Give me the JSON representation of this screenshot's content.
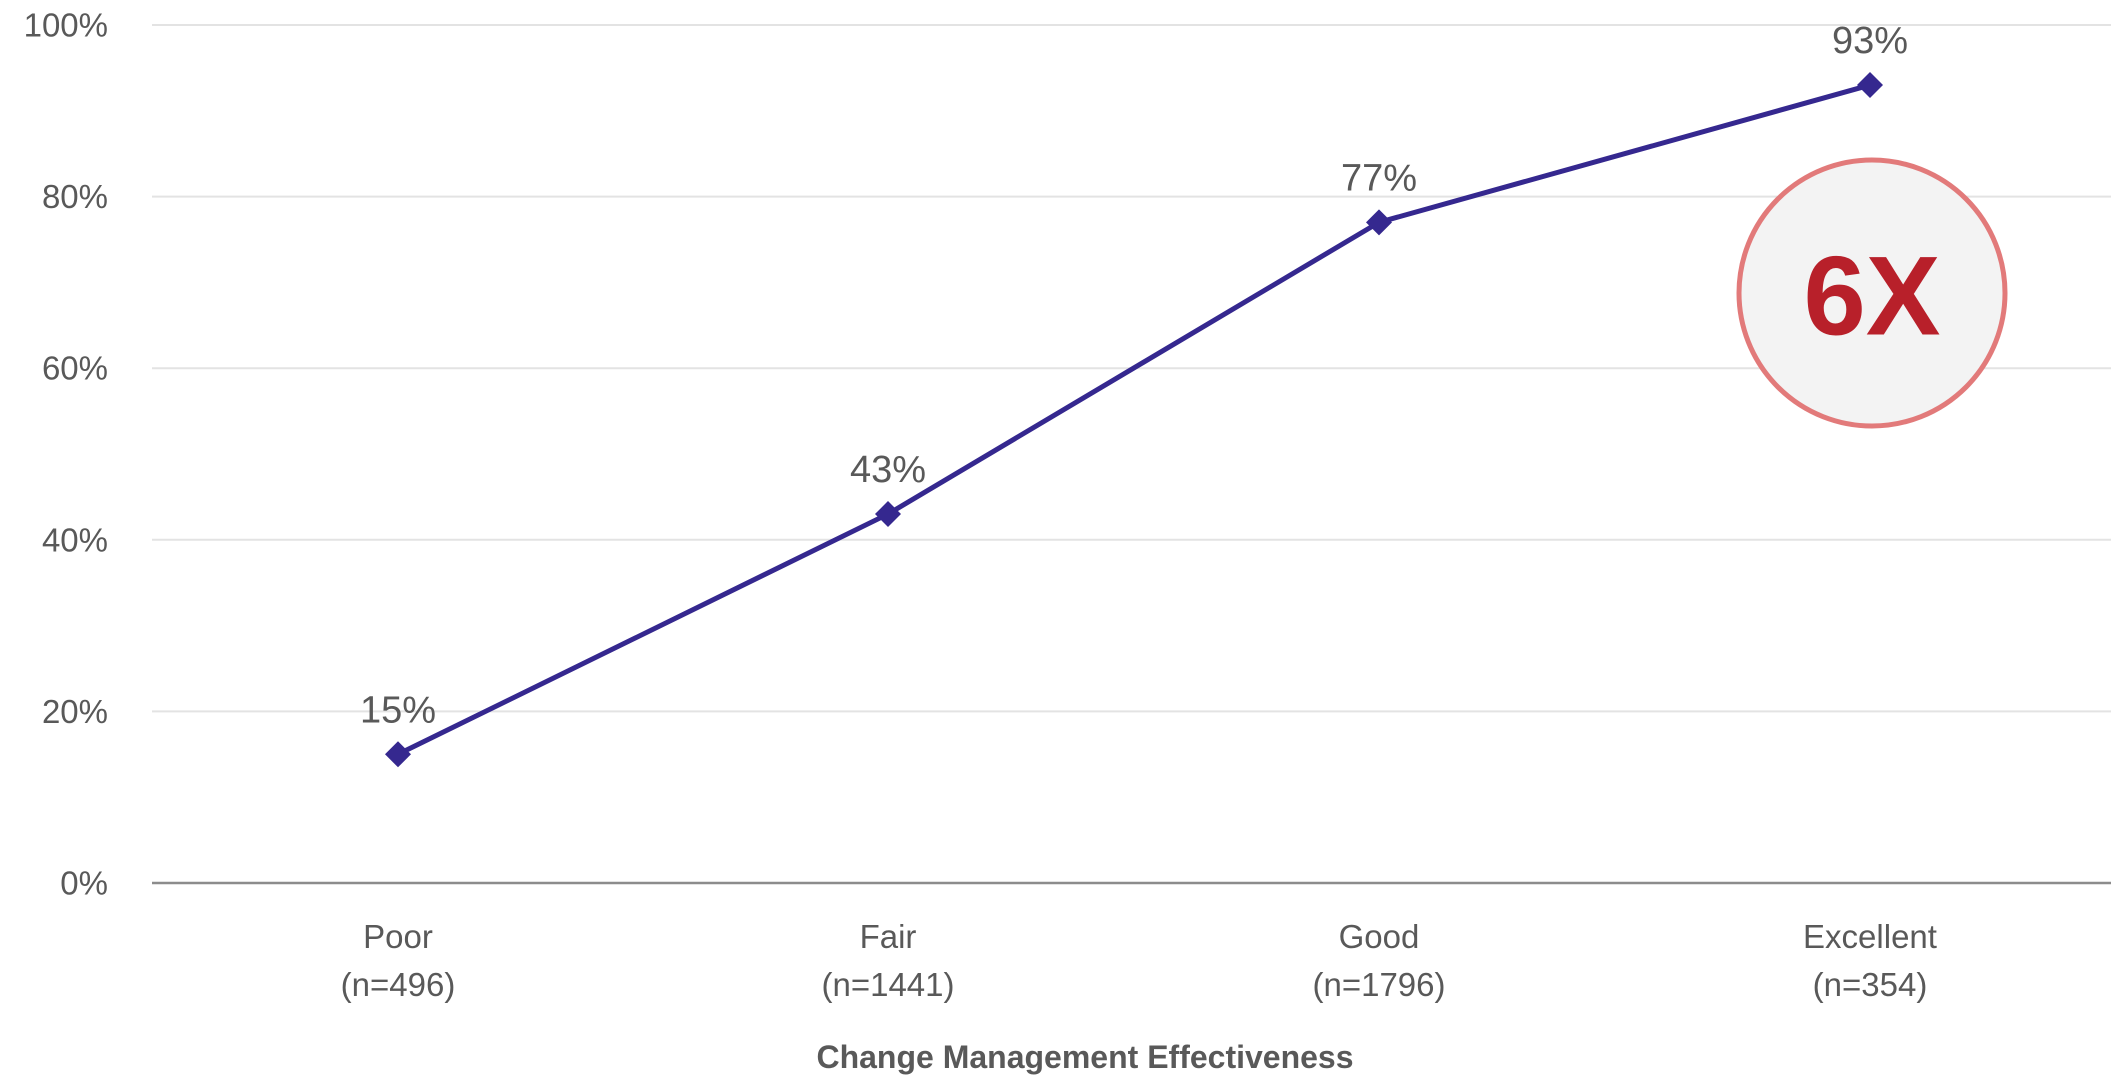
{
  "chart_data": {
    "type": "line",
    "categories": [
      "Poor",
      "Fair",
      "Good",
      "Excellent"
    ],
    "category_sublabels": [
      "(n=496)",
      "(n=1441)",
      "(n=1796)",
      "(n=354)"
    ],
    "series": [
      {
        "values": [
          15,
          43,
          77,
          93
        ],
        "color": "#35288f"
      }
    ],
    "data_labels": [
      "15%",
      "43%",
      "77%",
      "93%"
    ],
    "yticks": [
      "0%",
      "20%",
      "40%",
      "60%",
      "80%",
      "100%"
    ],
    "ylim": [
      0,
      100
    ],
    "xlabel": "Change Management Effectiveness",
    "ylabel": "",
    "title": "",
    "grid": true,
    "marker": "diamond",
    "annotation": {
      "text": "6X",
      "text_color": "#b8202a",
      "ring_color": "#e27a7a",
      "fill_color": "#f3f3f3"
    }
  }
}
